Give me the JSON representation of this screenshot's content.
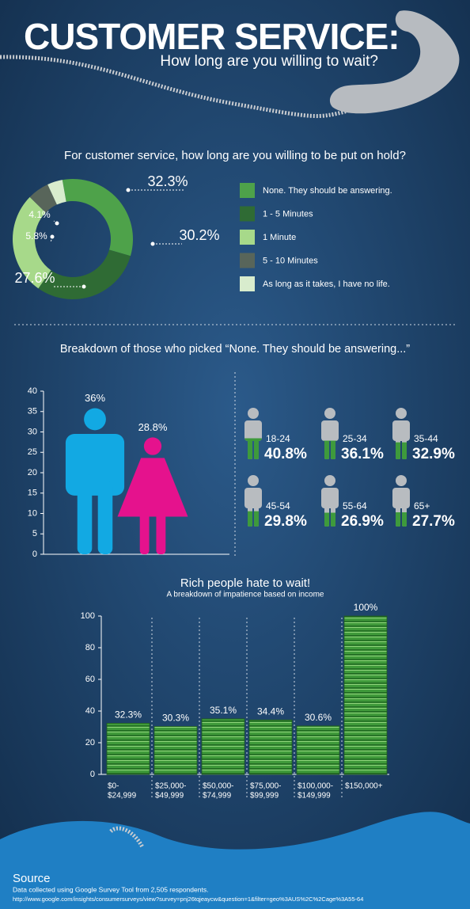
{
  "header": {
    "title": "CUSTOMER SERVICE:",
    "subtitle": "How long are you willing to wait?"
  },
  "chart_data": [
    {
      "type": "donut",
      "title": "For customer service, how long are you willing to be put on hold?",
      "categories": [
        "None. They should be answering.",
        "1 - 5 Minutes",
        "1 Minute",
        "5 - 10 Minutes",
        "As long as it takes, I have no life."
      ],
      "values": [
        32.3,
        30.2,
        27.6,
        5.8,
        4.1
      ],
      "value_labels": [
        "32.3%",
        "30.2%",
        "27.6%",
        "5.8%",
        "4.1%"
      ],
      "colors": [
        "#4ea24a",
        "#2f6b34",
        "#a7d98a",
        "#58655a",
        "#d8eccd"
      ]
    },
    {
      "type": "people",
      "title": "Breakdown of those who picked “None. They should be answering...”",
      "values": [
        36,
        28.8
      ],
      "value_labels": [
        "36%",
        "28.8%"
      ],
      "colors": [
        "#12a9e3",
        "#e5128d"
      ],
      "ylim": [
        0,
        40
      ],
      "yticks": [
        0,
        5,
        10,
        15,
        20,
        25,
        30,
        35,
        40
      ]
    },
    {
      "type": "pictogram",
      "categories": [
        "18-24",
        "25-34",
        "35-44",
        "45-54",
        "55-64",
        "65+"
      ],
      "values": [
        40.8,
        36.1,
        32.9,
        29.8,
        26.9,
        27.7
      ],
      "value_labels": [
        "40.8%",
        "36.1%",
        "32.9%",
        "29.8%",
        "26.9%",
        "27.7%"
      ],
      "color": "#3e9a3c"
    },
    {
      "type": "money",
      "title": "Rich people hate to wait!",
      "subtitle": "A breakdown of impatience based on income",
      "categories": [
        [
          "$0-",
          "$24,999"
        ],
        [
          "$25,000-",
          "$49,999"
        ],
        [
          "$50,000-",
          "$74,999"
        ],
        [
          "$75,000-",
          "$99,999"
        ],
        [
          "$100,000-",
          "$149,999"
        ],
        [
          "$150,000+"
        ]
      ],
      "values": [
        32.3,
        30.3,
        35.1,
        34.4,
        30.6,
        100
      ],
      "value_labels": [
        "32.3%",
        "30.3%",
        "35.1%",
        "34.4%",
        "30.6%",
        "100%"
      ],
      "color": "#3f9a3a",
      "ylim": [
        0,
        100
      ],
      "yticks": [
        0,
        20,
        40,
        60,
        80,
        100
      ]
    }
  ],
  "source": {
    "title": "Source",
    "lines": [
      "Data collected using Google Survey Tool from 2,505 respondents.",
      "http://www.google.com/insights/consumersurveys/view?survey=pnj26tqjeaycw&question=1&filter=geo%3AUS%2C%2Cage%3A55-64"
    ]
  }
}
